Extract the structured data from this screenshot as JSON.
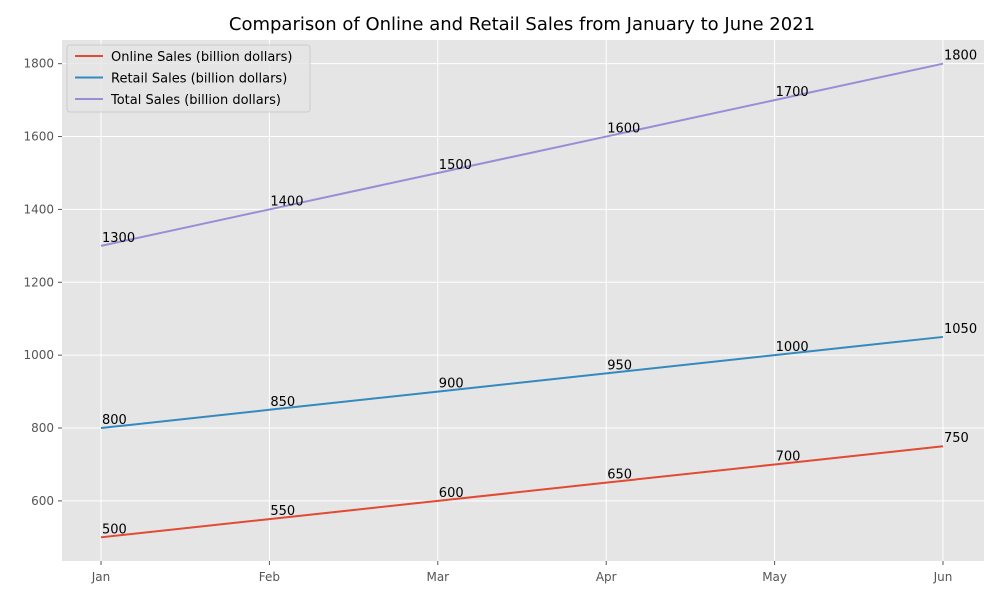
{
  "chart_data": {
    "type": "line",
    "title": "Comparison of Online and Retail Sales from January to June 2021",
    "xlabel": "",
    "ylabel": "",
    "categories": [
      "Jan",
      "Feb",
      "Mar",
      "Apr",
      "May",
      "Jun"
    ],
    "ylim": [
      435,
      1865
    ],
    "yticks": [
      600,
      800,
      1000,
      1200,
      1400,
      1600,
      1800
    ],
    "grid": true,
    "legend_position": "top-left",
    "background": "#E5E5E5",
    "series": [
      {
        "name": "Online Sales (billion dollars)",
        "color": "#E24A33",
        "values": [
          500,
          550,
          600,
          650,
          700,
          750
        ]
      },
      {
        "name": "Retail Sales (billion dollars)",
        "color": "#348ABD",
        "values": [
          800,
          850,
          900,
          950,
          1000,
          1050
        ]
      },
      {
        "name": "Total Sales (billion dollars)",
        "color": "#988ED5",
        "values": [
          1300,
          1400,
          1500,
          1600,
          1700,
          1800
        ]
      }
    ]
  }
}
